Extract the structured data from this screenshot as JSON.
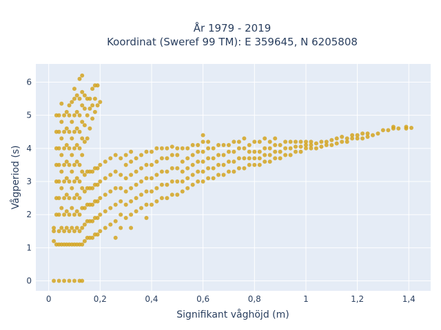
{
  "chart_data": {
    "type": "scatter",
    "title_line1": "År 1979 - 2019",
    "title_line2": "Koordinat (Sweref 99 TM): E 359645, N 6205808",
    "xlabel": "Signifikant våghöjd (m)",
    "ylabel": "Vågperiod (s)",
    "xlim": [
      -0.05,
      1.485
    ],
    "ylim": [
      -0.3,
      6.55
    ],
    "xticks": [
      0,
      0.2,
      0.4,
      0.6,
      0.8,
      1,
      1.2,
      1.4
    ],
    "xtick_labels": [
      "0",
      "0,2",
      "0,4",
      "0,6",
      "0,8",
      "1",
      "1,2",
      "1,4"
    ],
    "yticks": [
      0,
      1,
      2,
      3,
      4,
      5,
      6
    ],
    "ytick_labels": [
      "0",
      "1",
      "2",
      "3",
      "4",
      "5",
      "6"
    ],
    "grid": true,
    "marker_color": "#d4a521",
    "plot_bg": "#e5ecf6",
    "grid_color": "#ffffff",
    "points": [
      [
        0.02,
        0
      ],
      [
        0.04,
        0
      ],
      [
        0.06,
        0
      ],
      [
        0.08,
        0
      ],
      [
        0.1,
        0
      ],
      [
        0.12,
        0
      ],
      [
        0.13,
        0
      ],
      [
        0.02,
        1.5
      ],
      [
        0.02,
        1.6
      ],
      [
        0.02,
        1.2
      ],
      [
        0.03,
        1.1
      ],
      [
        0.03,
        2.0
      ],
      [
        0.03,
        2.5
      ],
      [
        0.03,
        3.0
      ],
      [
        0.03,
        3.5
      ],
      [
        0.03,
        4.0
      ],
      [
        0.03,
        4.5
      ],
      [
        0.03,
        5.0
      ],
      [
        0.04,
        1.1
      ],
      [
        0.04,
        1.5
      ],
      [
        0.04,
        2.0
      ],
      [
        0.04,
        2.5
      ],
      [
        0.04,
        3.0
      ],
      [
        0.04,
        3.5
      ],
      [
        0.04,
        4.0
      ],
      [
        0.04,
        4.5
      ],
      [
        0.04,
        5.0
      ],
      [
        0.05,
        1.1
      ],
      [
        0.05,
        1.6
      ],
      [
        0.05,
        2.2
      ],
      [
        0.05,
        2.8
      ],
      [
        0.05,
        3.3
      ],
      [
        0.05,
        3.8
      ],
      [
        0.05,
        4.3
      ],
      [
        0.05,
        4.8
      ],
      [
        0.05,
        5.35
      ],
      [
        0.06,
        1.1
      ],
      [
        0.06,
        1.5
      ],
      [
        0.06,
        2.0
      ],
      [
        0.06,
        2.5
      ],
      [
        0.06,
        3.0
      ],
      [
        0.06,
        3.5
      ],
      [
        0.06,
        4.0
      ],
      [
        0.06,
        4.5
      ],
      [
        0.06,
        5.0
      ],
      [
        0.07,
        1.1
      ],
      [
        0.07,
        1.6
      ],
      [
        0.07,
        2.1
      ],
      [
        0.07,
        2.6
      ],
      [
        0.07,
        3.1
      ],
      [
        0.07,
        3.6
      ],
      [
        0.07,
        4.1
      ],
      [
        0.07,
        4.6
      ],
      [
        0.07,
        5.1
      ],
      [
        0.08,
        1.1
      ],
      [
        0.08,
        1.5
      ],
      [
        0.08,
        2.0
      ],
      [
        0.08,
        2.5
      ],
      [
        0.08,
        3.0
      ],
      [
        0.08,
        3.5
      ],
      [
        0.08,
        4.0
      ],
      [
        0.08,
        4.5
      ],
      [
        0.08,
        5.0
      ],
      [
        0.08,
        5.3
      ],
      [
        0.09,
        1.1
      ],
      [
        0.09,
        1.6
      ],
      [
        0.09,
        2.2
      ],
      [
        0.09,
        2.8
      ],
      [
        0.09,
        3.3
      ],
      [
        0.09,
        3.8
      ],
      [
        0.09,
        4.3
      ],
      [
        0.09,
        4.8
      ],
      [
        0.09,
        5.4
      ],
      [
        0.1,
        1.1
      ],
      [
        0.1,
        1.5
      ],
      [
        0.1,
        2.0
      ],
      [
        0.1,
        2.5
      ],
      [
        0.1,
        3.0
      ],
      [
        0.1,
        3.5
      ],
      [
        0.1,
        4.0
      ],
      [
        0.1,
        4.5
      ],
      [
        0.1,
        5.0
      ],
      [
        0.1,
        5.5
      ],
      [
        0.1,
        5.8
      ],
      [
        0.11,
        1.1
      ],
      [
        0.11,
        1.6
      ],
      [
        0.11,
        2.1
      ],
      [
        0.11,
        2.6
      ],
      [
        0.11,
        3.1
      ],
      [
        0.11,
        3.6
      ],
      [
        0.11,
        4.1
      ],
      [
        0.11,
        4.6
      ],
      [
        0.11,
        5.1
      ],
      [
        0.11,
        5.6
      ],
      [
        0.12,
        1.1
      ],
      [
        0.12,
        1.5
      ],
      [
        0.12,
        2.0
      ],
      [
        0.12,
        2.5
      ],
      [
        0.12,
        3.0
      ],
      [
        0.12,
        3.5
      ],
      [
        0.12,
        4.0
      ],
      [
        0.12,
        4.5
      ],
      [
        0.12,
        5.0
      ],
      [
        0.12,
        5.5
      ],
      [
        0.12,
        6.1
      ],
      [
        0.13,
        1.1
      ],
      [
        0.13,
        1.6
      ],
      [
        0.13,
        2.2
      ],
      [
        0.13,
        2.8
      ],
      [
        0.13,
        3.3
      ],
      [
        0.13,
        3.8
      ],
      [
        0.13,
        4.3
      ],
      [
        0.13,
        4.8
      ],
      [
        0.13,
        5.3
      ],
      [
        0.13,
        5.7
      ],
      [
        0.13,
        6.2
      ],
      [
        0.14,
        1.2
      ],
      [
        0.14,
        1.7
      ],
      [
        0.14,
        2.2
      ],
      [
        0.14,
        2.7
      ],
      [
        0.14,
        3.2
      ],
      [
        0.14,
        4.2
      ],
      [
        0.14,
        4.7
      ],
      [
        0.14,
        5.2
      ],
      [
        0.14,
        5.6
      ],
      [
        0.15,
        1.3
      ],
      [
        0.15,
        1.8
      ],
      [
        0.15,
        2.3
      ],
      [
        0.15,
        2.8
      ],
      [
        0.15,
        3.3
      ],
      [
        0.15,
        4.3
      ],
      [
        0.15,
        5.0
      ],
      [
        0.15,
        5.5
      ],
      [
        0.16,
        1.3
      ],
      [
        0.16,
        1.8
      ],
      [
        0.16,
        2.3
      ],
      [
        0.16,
        2.8
      ],
      [
        0.16,
        3.3
      ],
      [
        0.16,
        4.6
      ],
      [
        0.16,
        5.2
      ],
      [
        0.16,
        5.5
      ],
      [
        0.17,
        1.3
      ],
      [
        0.17,
        1.8
      ],
      [
        0.17,
        2.3
      ],
      [
        0.17,
        2.8
      ],
      [
        0.17,
        3.3
      ],
      [
        0.17,
        4.9
      ],
      [
        0.17,
        5.3
      ],
      [
        0.17,
        5.8
      ],
      [
        0.18,
        1.4
      ],
      [
        0.18,
        1.9
      ],
      [
        0.18,
        2.4
      ],
      [
        0.18,
        2.9
      ],
      [
        0.18,
        3.4
      ],
      [
        0.18,
        5.1
      ],
      [
        0.18,
        5.5
      ],
      [
        0.18,
        5.9
      ],
      [
        0.19,
        1.4
      ],
      [
        0.19,
        1.9
      ],
      [
        0.19,
        2.4
      ],
      [
        0.19,
        2.9
      ],
      [
        0.19,
        3.4
      ],
      [
        0.19,
        5.3
      ],
      [
        0.19,
        5.9
      ],
      [
        0.2,
        1.5
      ],
      [
        0.2,
        2.0
      ],
      [
        0.2,
        2.5
      ],
      [
        0.2,
        3.0
      ],
      [
        0.2,
        3.5
      ],
      [
        0.2,
        5.4
      ],
      [
        0.22,
        1.6
      ],
      [
        0.22,
        2.1
      ],
      [
        0.22,
        2.6
      ],
      [
        0.22,
        3.1
      ],
      [
        0.22,
        3.6
      ],
      [
        0.24,
        1.7
      ],
      [
        0.24,
        2.2
      ],
      [
        0.24,
        2.7
      ],
      [
        0.24,
        3.2
      ],
      [
        0.24,
        3.7
      ],
      [
        0.26,
        1.3
      ],
      [
        0.26,
        1.8
      ],
      [
        0.26,
        2.3
      ],
      [
        0.26,
        2.8
      ],
      [
        0.26,
        3.3
      ],
      [
        0.26,
        3.8
      ],
      [
        0.28,
        1.6
      ],
      [
        0.28,
        2.0
      ],
      [
        0.28,
        2.4
      ],
      [
        0.28,
        2.8
      ],
      [
        0.28,
        3.2
      ],
      [
        0.28,
        3.7
      ],
      [
        0.3,
        1.9
      ],
      [
        0.3,
        2.3
      ],
      [
        0.3,
        2.7
      ],
      [
        0.3,
        3.1
      ],
      [
        0.3,
        3.5
      ],
      [
        0.3,
        3.8
      ],
      [
        0.32,
        1.6
      ],
      [
        0.32,
        2.0
      ],
      [
        0.32,
        2.4
      ],
      [
        0.32,
        2.8
      ],
      [
        0.32,
        3.2
      ],
      [
        0.32,
        3.6
      ],
      [
        0.32,
        3.9
      ],
      [
        0.34,
        2.1
      ],
      [
        0.34,
        2.5
      ],
      [
        0.34,
        2.9
      ],
      [
        0.34,
        3.3
      ],
      [
        0.34,
        3.7
      ],
      [
        0.36,
        2.2
      ],
      [
        0.36,
        2.6
      ],
      [
        0.36,
        3.0
      ],
      [
        0.36,
        3.4
      ],
      [
        0.36,
        3.8
      ],
      [
        0.38,
        1.9
      ],
      [
        0.38,
        2.3
      ],
      [
        0.38,
        2.7
      ],
      [
        0.38,
        3.1
      ],
      [
        0.38,
        3.5
      ],
      [
        0.38,
        3.9
      ],
      [
        0.4,
        2.3
      ],
      [
        0.4,
        2.7
      ],
      [
        0.4,
        3.1
      ],
      [
        0.4,
        3.5
      ],
      [
        0.4,
        3.9
      ],
      [
        0.42,
        2.4
      ],
      [
        0.42,
        2.8
      ],
      [
        0.42,
        3.2
      ],
      [
        0.42,
        3.6
      ],
      [
        0.42,
        4.0
      ],
      [
        0.44,
        2.5
      ],
      [
        0.44,
        2.9
      ],
      [
        0.44,
        3.3
      ],
      [
        0.44,
        3.7
      ],
      [
        0.44,
        4.0
      ],
      [
        0.46,
        2.5
      ],
      [
        0.46,
        2.9
      ],
      [
        0.46,
        3.3
      ],
      [
        0.46,
        3.7
      ],
      [
        0.46,
        4.0
      ],
      [
        0.48,
        2.6
      ],
      [
        0.48,
        3.0
      ],
      [
        0.48,
        3.4
      ],
      [
        0.48,
        3.8
      ],
      [
        0.48,
        4.05
      ],
      [
        0.5,
        2.6
      ],
      [
        0.5,
        3.0
      ],
      [
        0.5,
        3.4
      ],
      [
        0.5,
        3.8
      ],
      [
        0.5,
        4.0
      ],
      [
        0.52,
        2.7
      ],
      [
        0.52,
        3.0
      ],
      [
        0.52,
        3.3
      ],
      [
        0.52,
        3.6
      ],
      [
        0.52,
        4.0
      ],
      [
        0.54,
        2.8
      ],
      [
        0.54,
        3.1
      ],
      [
        0.54,
        3.4
      ],
      [
        0.54,
        3.7
      ],
      [
        0.54,
        4.0
      ],
      [
        0.56,
        2.9
      ],
      [
        0.56,
        3.2
      ],
      [
        0.56,
        3.5
      ],
      [
        0.56,
        3.8
      ],
      [
        0.56,
        4.1
      ],
      [
        0.58,
        3.0
      ],
      [
        0.58,
        3.3
      ],
      [
        0.58,
        3.6
      ],
      [
        0.58,
        3.9
      ],
      [
        0.58,
        4.1
      ],
      [
        0.6,
        3.0
      ],
      [
        0.6,
        3.3
      ],
      [
        0.6,
        3.6
      ],
      [
        0.6,
        3.9
      ],
      [
        0.6,
        4.2
      ],
      [
        0.6,
        4.4
      ],
      [
        0.62,
        3.1
      ],
      [
        0.62,
        3.4
      ],
      [
        0.62,
        3.7
      ],
      [
        0.62,
        4.0
      ],
      [
        0.62,
        4.2
      ],
      [
        0.64,
        3.1
      ],
      [
        0.64,
        3.4
      ],
      [
        0.64,
        3.7
      ],
      [
        0.64,
        4.0
      ],
      [
        0.66,
        3.2
      ],
      [
        0.66,
        3.5
      ],
      [
        0.66,
        3.8
      ],
      [
        0.66,
        4.1
      ],
      [
        0.68,
        3.2
      ],
      [
        0.68,
        3.5
      ],
      [
        0.68,
        3.8
      ],
      [
        0.68,
        4.1
      ],
      [
        0.7,
        3.3
      ],
      [
        0.7,
        3.6
      ],
      [
        0.7,
        3.9
      ],
      [
        0.7,
        4.1
      ],
      [
        0.72,
        3.3
      ],
      [
        0.72,
        3.6
      ],
      [
        0.72,
        3.9
      ],
      [
        0.72,
        4.2
      ],
      [
        0.74,
        3.4
      ],
      [
        0.74,
        3.7
      ],
      [
        0.74,
        4.0
      ],
      [
        0.74,
        4.2
      ],
      [
        0.76,
        3.4
      ],
      [
        0.76,
        3.7
      ],
      [
        0.76,
        4.0
      ],
      [
        0.76,
        4.3
      ],
      [
        0.78,
        3.5
      ],
      [
        0.78,
        3.7
      ],
      [
        0.78,
        3.9
      ],
      [
        0.78,
        4.1
      ],
      [
        0.8,
        3.5
      ],
      [
        0.8,
        3.7
      ],
      [
        0.8,
        3.9
      ],
      [
        0.8,
        4.2
      ],
      [
        0.82,
        3.5
      ],
      [
        0.82,
        3.7
      ],
      [
        0.82,
        3.9
      ],
      [
        0.82,
        4.2
      ],
      [
        0.84,
        3.6
      ],
      [
        0.84,
        3.8
      ],
      [
        0.84,
        4.0
      ],
      [
        0.84,
        4.3
      ],
      [
        0.86,
        3.6
      ],
      [
        0.86,
        3.8
      ],
      [
        0.86,
        4.0
      ],
      [
        0.86,
        4.2
      ],
      [
        0.88,
        3.7
      ],
      [
        0.88,
        3.9
      ],
      [
        0.88,
        4.1
      ],
      [
        0.88,
        4.3
      ],
      [
        0.9,
        3.7
      ],
      [
        0.9,
        3.9
      ],
      [
        0.9,
        4.1
      ],
      [
        0.92,
        3.8
      ],
      [
        0.92,
        4.0
      ],
      [
        0.92,
        4.2
      ],
      [
        0.94,
        3.8
      ],
      [
        0.94,
        4.0
      ],
      [
        0.94,
        4.2
      ],
      [
        0.96,
        3.9
      ],
      [
        0.96,
        4.05
      ],
      [
        0.96,
        4.2
      ],
      [
        0.98,
        3.9
      ],
      [
        0.98,
        4.05
      ],
      [
        0.98,
        4.2
      ],
      [
        1.0,
        4.0
      ],
      [
        1.0,
        4.1
      ],
      [
        1.0,
        4.2
      ],
      [
        1.02,
        4.0
      ],
      [
        1.02,
        4.1
      ],
      [
        1.02,
        4.2
      ],
      [
        1.04,
        4.0
      ],
      [
        1.04,
        4.15
      ],
      [
        1.06,
        4.05
      ],
      [
        1.06,
        4.2
      ],
      [
        1.08,
        4.1
      ],
      [
        1.08,
        4.2
      ],
      [
        1.1,
        4.1
      ],
      [
        1.1,
        4.25
      ],
      [
        1.12,
        4.15
      ],
      [
        1.12,
        4.3
      ],
      [
        1.14,
        4.2
      ],
      [
        1.14,
        4.35
      ],
      [
        1.16,
        4.2
      ],
      [
        1.16,
        4.3
      ],
      [
        1.18,
        4.3
      ],
      [
        1.18,
        4.4
      ],
      [
        1.2,
        4.3
      ],
      [
        1.2,
        4.4
      ],
      [
        1.22,
        4.3
      ],
      [
        1.22,
        4.45
      ],
      [
        1.24,
        4.35
      ],
      [
        1.24,
        4.45
      ],
      [
        1.26,
        4.4
      ],
      [
        1.28,
        4.45
      ],
      [
        1.3,
        4.55
      ],
      [
        1.32,
        4.55
      ],
      [
        1.34,
        4.6
      ],
      [
        1.34,
        4.65
      ],
      [
        1.36,
        4.6
      ],
      [
        1.39,
        4.6
      ],
      [
        1.39,
        4.65
      ],
      [
        1.41,
        4.62
      ]
    ]
  }
}
